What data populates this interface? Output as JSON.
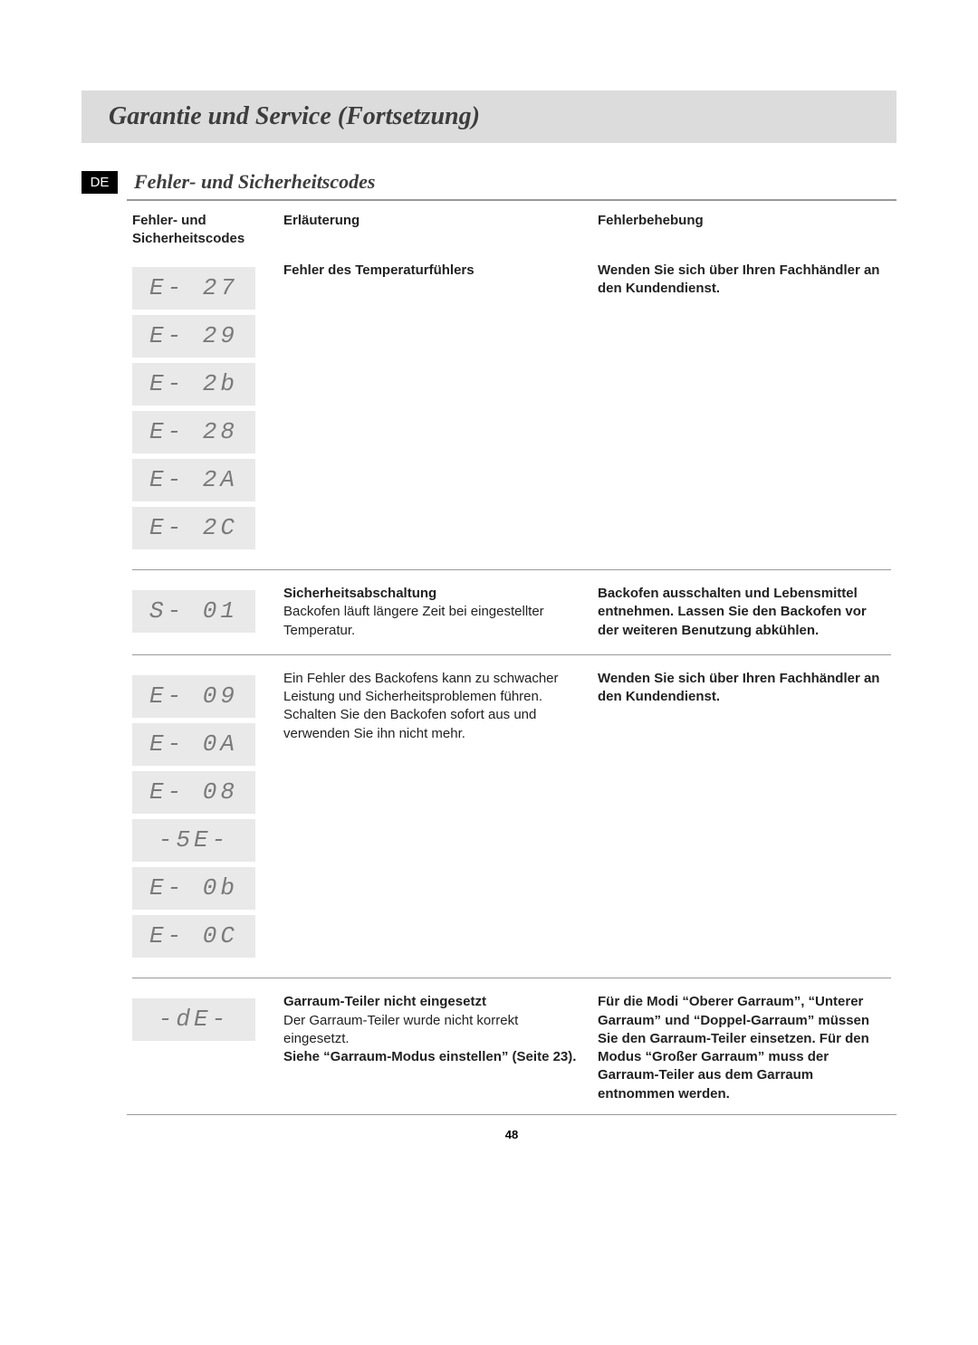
{
  "page": {
    "title": "Garantie und Service (Fortsetzung)",
    "lang_badge": "DE",
    "subtitle": "Fehler- und Sicherheitscodes",
    "number": "48"
  },
  "table": {
    "headers": {
      "codes": "Fehler- und Sicherheitscodes",
      "explanation": "Erläuterung",
      "fix": "Fehlerbehebung"
    },
    "rows": [
      {
        "codes": [
          "E- 27",
          "E- 29",
          "E- 2b",
          "E- 28",
          "E- 2A",
          "E- 2C"
        ],
        "explanation_bold": "Fehler des Temperaturfühlers",
        "explanation_rest": "",
        "fix_bold": "Wenden Sie sich über Ihren Fachhändler an den Kundendienst.",
        "fix_rest": ""
      },
      {
        "codes": [
          "S- 01"
        ],
        "explanation_bold": "Sicherheitsabschaltung",
        "explanation_rest": "Backofen läuft längere Zeit bei eingestellter Temperatur.",
        "fix_bold": "Backofen ausschalten und Lebensmittel entnehmen. Lassen Sie den Backofen vor der weiteren Benutzung abkühlen.",
        "fix_rest": ""
      },
      {
        "codes": [
          "E- 09",
          "E- 0A",
          "E- 08",
          "-5E-",
          "E- 0b",
          "E- 0C"
        ],
        "explanation_bold": "",
        "explanation_rest": "Ein Fehler des Backofens kann zu schwacher Leistung und Sicherheitsproblemen führen. Schalten Sie den Backofen sofort aus und verwenden Sie ihn nicht mehr.",
        "fix_bold": "Wenden Sie sich über Ihren Fachhändler an den Kundendienst.",
        "fix_rest": ""
      },
      {
        "codes": [
          "-dE-"
        ],
        "explanation_bold": "Garraum-Teiler nicht eingesetzt",
        "explanation_rest": "Der Garraum-Teiler wurde nicht korrekt eingesetzt.",
        "explanation_bold2": "Siehe “Garraum-Modus einstellen” (Seite 23).",
        "fix_bold": "Für die Modi “Oberer Garraum”, “Unterer Garraum” und “Doppel-Garraum” müssen Sie den Garraum-Teiler einsetzen. Für den Modus “Großer Garraum” muss der Garraum-Teiler aus dem Garraum entnommen werden.",
        "fix_rest": ""
      }
    ]
  }
}
